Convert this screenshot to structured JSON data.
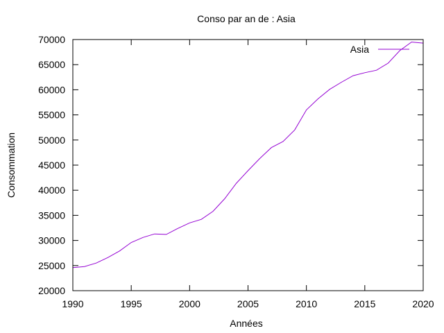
{
  "chart_data": {
    "type": "line",
    "title": "Conso par an de : Asia",
    "xlabel": "Années",
    "ylabel": "Consommation",
    "xlim": [
      1990,
      2020
    ],
    "ylim": [
      20000,
      70000
    ],
    "xticks": [
      "1990",
      "1995",
      "2000",
      "2005",
      "2010",
      "2015",
      "2020"
    ],
    "yticks": [
      "20000",
      "25000",
      "30000",
      "35000",
      "40000",
      "45000",
      "50000",
      "55000",
      "60000",
      "65000",
      "70000"
    ],
    "grid": false,
    "legend_position": "top-right",
    "series": [
      {
        "name": "Asia",
        "color": "#9400d3",
        "x": [
          1990,
          1991,
          1992,
          1993,
          1994,
          1995,
          1996,
          1997,
          1998,
          1999,
          2000,
          2001,
          2002,
          2003,
          2004,
          2005,
          2006,
          2007,
          2008,
          2009,
          2010,
          2011,
          2012,
          2013,
          2014,
          2015,
          2016,
          2017,
          2018,
          2019,
          2020
        ],
        "y": [
          24600,
          24800,
          25500,
          26600,
          27900,
          29600,
          30600,
          31300,
          31200,
          32400,
          33500,
          34200,
          35800,
          38300,
          41400,
          43900,
          46300,
          48500,
          49700,
          52000,
          56000,
          58200,
          60100,
          61500,
          62800,
          63400,
          63900,
          65300,
          67800,
          69500,
          69300
        ]
      }
    ]
  }
}
